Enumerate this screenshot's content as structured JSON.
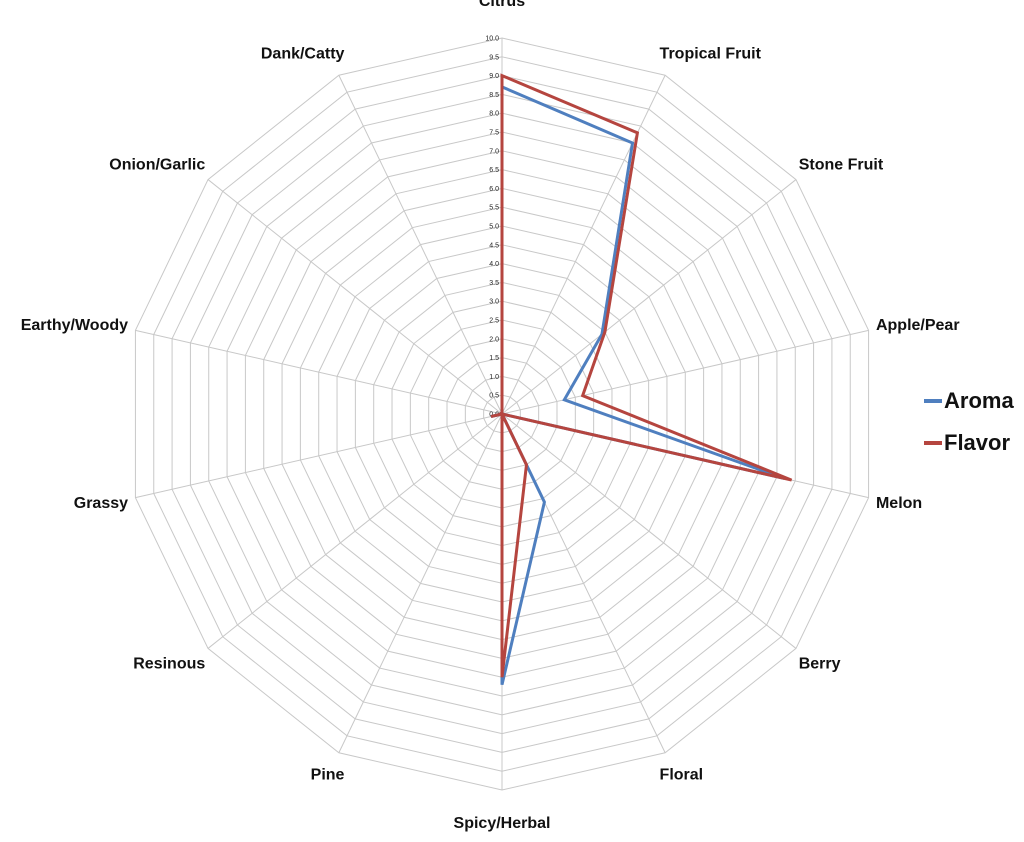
{
  "chart_data": {
    "type": "radar",
    "categories": [
      "Citrus",
      "Tropical Fruit",
      "Stone Fruit",
      "Apple/Pear",
      "Melon",
      "Berry",
      "Floral",
      "Spicy/Herbal",
      "Pine",
      "Resinous",
      "Grassy",
      "Earthy/Woody",
      "Onion/Garlic",
      "Dank/Catty"
    ],
    "series": [
      {
        "name": "Aroma",
        "color": "#4f7fbf",
        "values": [
          8.7,
          8.0,
          3.4,
          1.7,
          7.7,
          0.0,
          2.6,
          7.2,
          0.0,
          0.0,
          0.3,
          0.0,
          0.0,
          0.0
        ]
      },
      {
        "name": "Flavor",
        "color": "#b5453f",
        "values": [
          9.0,
          8.3,
          3.5,
          2.2,
          7.9,
          0.0,
          1.5,
          7.0,
          0.0,
          0.0,
          0.3,
          0.0,
          0.0,
          0.0
        ]
      }
    ],
    "rlim": [
      0,
      10
    ],
    "tick_step": 0.5,
    "tick_labels": [
      "0.0",
      "0.5",
      "1.0",
      "1.5",
      "2.0",
      "2.5",
      "3.0",
      "3.5",
      "4.0",
      "4.5",
      "5.0",
      "5.5",
      "6.0",
      "6.5",
      "7.0",
      "7.5",
      "8.0",
      "8.5",
      "9.0",
      "9.5",
      "10.0"
    ],
    "grid": true,
    "legend_position": "right"
  }
}
